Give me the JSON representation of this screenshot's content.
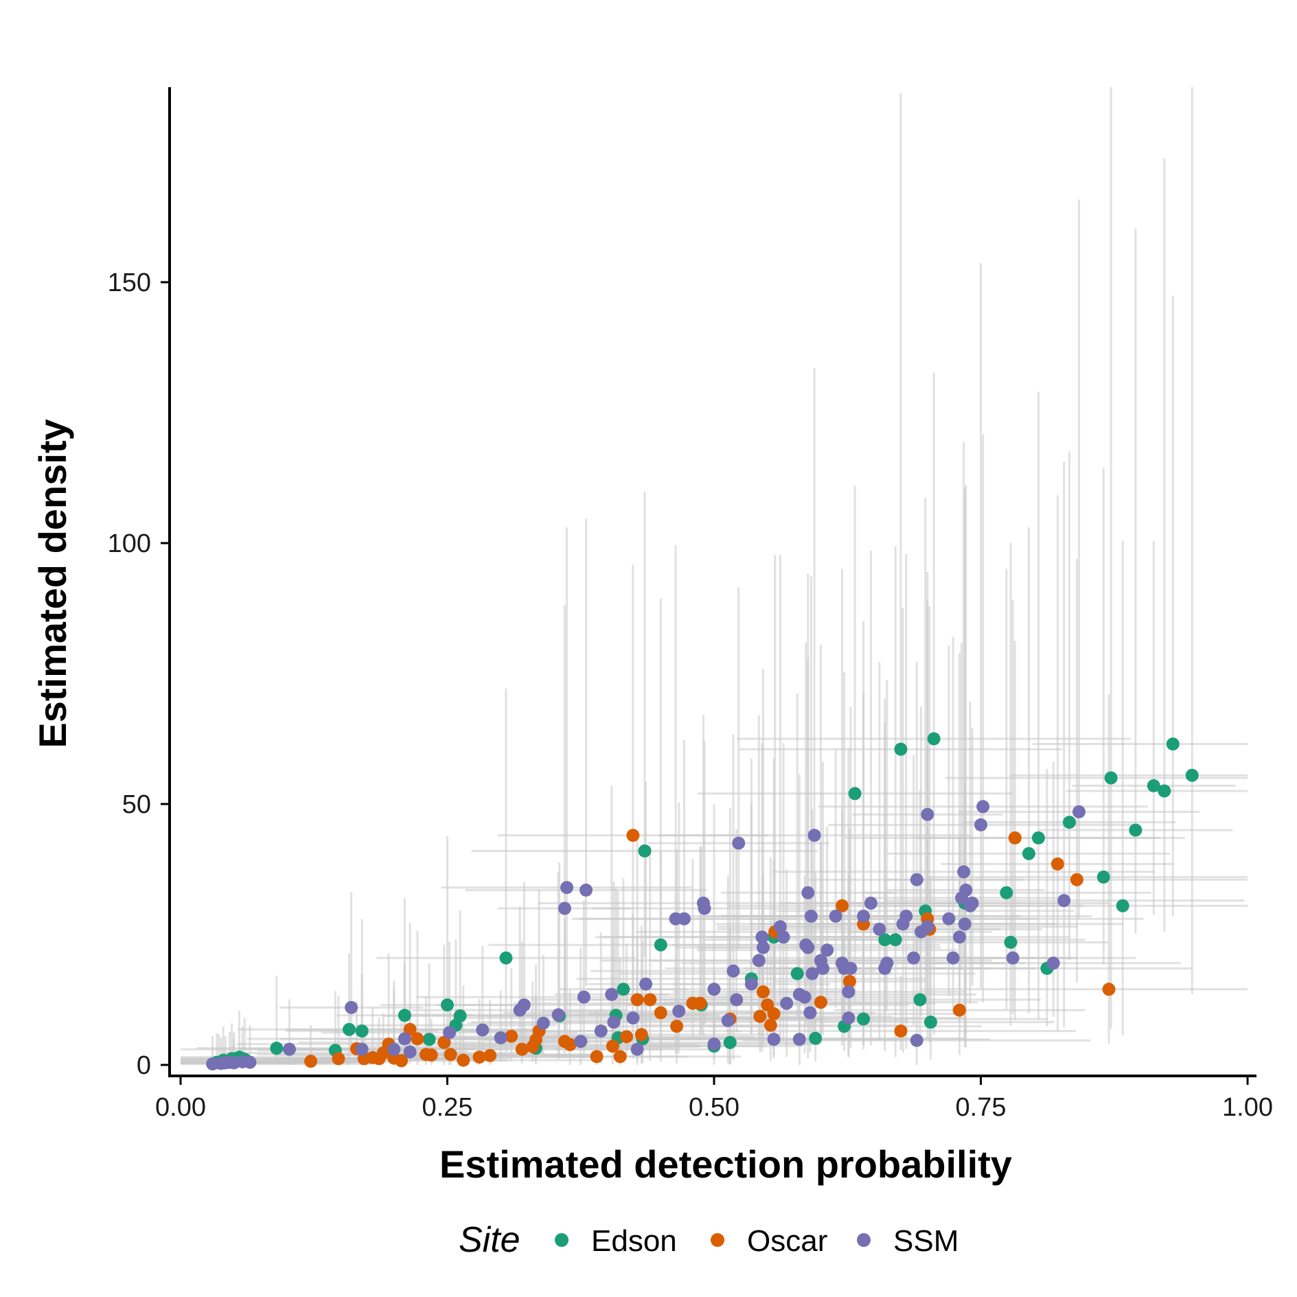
{
  "chart_data": {
    "type": "scatter",
    "title": "",
    "xlabel": "Estimated detection probability",
    "ylabel": "Estimated density",
    "xlim": [
      0,
      1
    ],
    "ylim": [
      0,
      186
    ],
    "x_ticks": [
      0,
      0.25,
      0.5,
      0.75,
      1
    ],
    "x_tick_labels": [
      "0.00",
      "0.25",
      "0.50",
      "0.75",
      "1.00"
    ],
    "y_ticks": [
      0,
      50,
      100,
      150
    ],
    "y_tick_labels": [
      "0",
      "50",
      "100",
      "150"
    ],
    "grid": false,
    "error_bars": "light grey, both x and y",
    "legend": {
      "title": "Site",
      "position": "bottom",
      "entries": [
        {
          "name": "Edson",
          "color": "#1b9e77"
        },
        {
          "name": "Oscar",
          "color": "#d95f02"
        },
        {
          "name": "SSM",
          "color": "#7570b3"
        }
      ]
    },
    "series": [
      {
        "name": "Edson",
        "color": "#1b9e77",
        "points": [
          [
            0.034,
            0.5
          ],
          [
            0.036,
            0.4
          ],
          [
            0.04,
            0.9
          ],
          [
            0.048,
            1.2
          ],
          [
            0.05,
            0.8
          ],
          [
            0.055,
            1.5
          ],
          [
            0.06,
            1.1
          ],
          [
            0.09,
            3.2
          ],
          [
            0.145,
            2.8
          ],
          [
            0.158,
            6.8
          ],
          [
            0.17,
            6.5
          ],
          [
            0.21,
            9.5
          ],
          [
            0.233,
            4.9
          ],
          [
            0.25,
            11.5
          ],
          [
            0.258,
            7.6
          ],
          [
            0.262,
            9.4
          ],
          [
            0.305,
            20.5
          ],
          [
            0.333,
            3.2
          ],
          [
            0.355,
            9.4
          ],
          [
            0.408,
            9.5
          ],
          [
            0.41,
            5.2
          ],
          [
            0.415,
            14.5
          ],
          [
            0.433,
            5.0
          ],
          [
            0.435,
            41.0
          ],
          [
            0.45,
            23.0
          ],
          [
            0.488,
            11.5
          ],
          [
            0.5,
            3.6
          ],
          [
            0.515,
            4.3
          ],
          [
            0.535,
            16.5
          ],
          [
            0.556,
            24.5
          ],
          [
            0.578,
            17.5
          ],
          [
            0.595,
            5.1
          ],
          [
            0.622,
            7.4
          ],
          [
            0.632,
            52.0
          ],
          [
            0.64,
            8.8
          ],
          [
            0.66,
            24.0
          ],
          [
            0.67,
            24.0
          ],
          [
            0.675,
            60.5
          ],
          [
            0.693,
            12.5
          ],
          [
            0.698,
            29.5
          ],
          [
            0.703,
            8.2
          ],
          [
            0.706,
            62.5
          ],
          [
            0.735,
            31.0
          ],
          [
            0.774,
            33.0
          ],
          [
            0.778,
            23.5
          ],
          [
            0.795,
            40.5
          ],
          [
            0.804,
            43.5
          ],
          [
            0.812,
            18.5
          ],
          [
            0.833,
            46.5
          ],
          [
            0.865,
            36.0
          ],
          [
            0.872,
            55.0
          ],
          [
            0.883,
            30.5
          ],
          [
            0.895,
            45.0
          ],
          [
            0.912,
            53.5
          ],
          [
            0.922,
            52.5
          ],
          [
            0.93,
            61.5
          ],
          [
            0.948,
            55.5
          ]
        ]
      },
      {
        "name": "Oscar",
        "color": "#d95f02",
        "points": [
          [
            0.122,
            0.7
          ],
          [
            0.148,
            1.2
          ],
          [
            0.165,
            3.1
          ],
          [
            0.172,
            1.2
          ],
          [
            0.18,
            1.4
          ],
          [
            0.186,
            1.2
          ],
          [
            0.19,
            2.3
          ],
          [
            0.195,
            4.0
          ],
          [
            0.2,
            1.3
          ],
          [
            0.207,
            0.8
          ],
          [
            0.215,
            6.8
          ],
          [
            0.222,
            5.0
          ],
          [
            0.23,
            2.0
          ],
          [
            0.235,
            1.9
          ],
          [
            0.247,
            4.3
          ],
          [
            0.253,
            2.0
          ],
          [
            0.265,
            0.9
          ],
          [
            0.28,
            1.5
          ],
          [
            0.29,
            1.8
          ],
          [
            0.31,
            5.5
          ],
          [
            0.32,
            3.0
          ],
          [
            0.33,
            3.5
          ],
          [
            0.333,
            4.8
          ],
          [
            0.336,
            6.5
          ],
          [
            0.36,
            4.5
          ],
          [
            0.365,
            3.9
          ],
          [
            0.39,
            1.6
          ],
          [
            0.405,
            3.6
          ],
          [
            0.412,
            1.6
          ],
          [
            0.418,
            5.4
          ],
          [
            0.424,
            44.0
          ],
          [
            0.428,
            12.5
          ],
          [
            0.432,
            5.8
          ],
          [
            0.44,
            12.5
          ],
          [
            0.45,
            10.0
          ],
          [
            0.465,
            7.4
          ],
          [
            0.48,
            11.8
          ],
          [
            0.487,
            11.8
          ],
          [
            0.515,
            8.8
          ],
          [
            0.543,
            9.3
          ],
          [
            0.546,
            14.0
          ],
          [
            0.55,
            11.5
          ],
          [
            0.553,
            7.6
          ],
          [
            0.556,
            9.8
          ],
          [
            0.557,
            25.5
          ],
          [
            0.6,
            12.0
          ],
          [
            0.62,
            30.5
          ],
          [
            0.627,
            16.0
          ],
          [
            0.64,
            27.0
          ],
          [
            0.675,
            6.5
          ],
          [
            0.7,
            28.0
          ],
          [
            0.702,
            26.0
          ],
          [
            0.73,
            10.5
          ],
          [
            0.782,
            43.5
          ],
          [
            0.822,
            38.5
          ],
          [
            0.84,
            35.5
          ],
          [
            0.87,
            14.5
          ]
        ]
      },
      {
        "name": "SSM",
        "color": "#7570b3",
        "points": [
          [
            0.03,
            0.2
          ],
          [
            0.038,
            0.3
          ],
          [
            0.042,
            0.4
          ],
          [
            0.046,
            0.5
          ],
          [
            0.05,
            0.4
          ],
          [
            0.058,
            0.6
          ],
          [
            0.065,
            0.5
          ],
          [
            0.102,
            3.0
          ],
          [
            0.16,
            11.0
          ],
          [
            0.17,
            3.0
          ],
          [
            0.2,
            3.0
          ],
          [
            0.21,
            5.0
          ],
          [
            0.215,
            2.5
          ],
          [
            0.252,
            6.2
          ],
          [
            0.283,
            6.7
          ],
          [
            0.3,
            5.2
          ],
          [
            0.318,
            10.5
          ],
          [
            0.322,
            11.5
          ],
          [
            0.34,
            8.0
          ],
          [
            0.354,
            9.6
          ],
          [
            0.36,
            30.0
          ],
          [
            0.362,
            34.0
          ],
          [
            0.375,
            4.5
          ],
          [
            0.378,
            13.0
          ],
          [
            0.38,
            33.5
          ],
          [
            0.394,
            6.5
          ],
          [
            0.404,
            13.5
          ],
          [
            0.406,
            8.2
          ],
          [
            0.424,
            9.0
          ],
          [
            0.428,
            3.0
          ],
          [
            0.436,
            15.5
          ],
          [
            0.464,
            28.0
          ],
          [
            0.467,
            10.3
          ],
          [
            0.472,
            28.0
          ],
          [
            0.49,
            31.0
          ],
          [
            0.491,
            30.0
          ],
          [
            0.5,
            4.0
          ],
          [
            0.5,
            14.5
          ],
          [
            0.513,
            8.5
          ],
          [
            0.518,
            18.0
          ],
          [
            0.521,
            12.5
          ],
          [
            0.523,
            42.5
          ],
          [
            0.535,
            15.5
          ],
          [
            0.542,
            20.0
          ],
          [
            0.545,
            24.5
          ],
          [
            0.546,
            22.5
          ],
          [
            0.556,
            4.9
          ],
          [
            0.562,
            26.5
          ],
          [
            0.565,
            24.5
          ],
          [
            0.568,
            11.8
          ],
          [
            0.58,
            4.9
          ],
          [
            0.58,
            13.5
          ],
          [
            0.585,
            13.0
          ],
          [
            0.586,
            23.0
          ],
          [
            0.588,
            33.0
          ],
          [
            0.588,
            22.5
          ],
          [
            0.59,
            10.0
          ],
          [
            0.591,
            28.5
          ],
          [
            0.592,
            17.5
          ],
          [
            0.594,
            44.0
          ],
          [
            0.6,
            20.0
          ],
          [
            0.602,
            18.5
          ],
          [
            0.606,
            22.0
          ],
          [
            0.614,
            28.5
          ],
          [
            0.62,
            19.5
          ],
          [
            0.622,
            18.5
          ],
          [
            0.626,
            9.0
          ],
          [
            0.626,
            14.0
          ],
          [
            0.628,
            18.5
          ],
          [
            0.64,
            28.5
          ],
          [
            0.647,
            31.0
          ],
          [
            0.655,
            26.0
          ],
          [
            0.66,
            18.5
          ],
          [
            0.662,
            19.5
          ],
          [
            0.677,
            27.0
          ],
          [
            0.68,
            28.5
          ],
          [
            0.687,
            20.5
          ],
          [
            0.69,
            35.5
          ],
          [
            0.694,
            25.5
          ],
          [
            0.69,
            4.7
          ],
          [
            0.7,
            26.5
          ],
          [
            0.7,
            48.0
          ],
          [
            0.72,
            28.0
          ],
          [
            0.724,
            20.5
          ],
          [
            0.73,
            24.5
          ],
          [
            0.732,
            32.0
          ],
          [
            0.734,
            37.0
          ],
          [
            0.735,
            27.0
          ],
          [
            0.736,
            33.5
          ],
          [
            0.74,
            30.5
          ],
          [
            0.742,
            31.0
          ],
          [
            0.75,
            46.0
          ],
          [
            0.752,
            49.5
          ],
          [
            0.78,
            20.5
          ],
          [
            0.818,
            19.5
          ],
          [
            0.828,
            31.5
          ],
          [
            0.842,
            48.5
          ]
        ]
      }
    ]
  }
}
